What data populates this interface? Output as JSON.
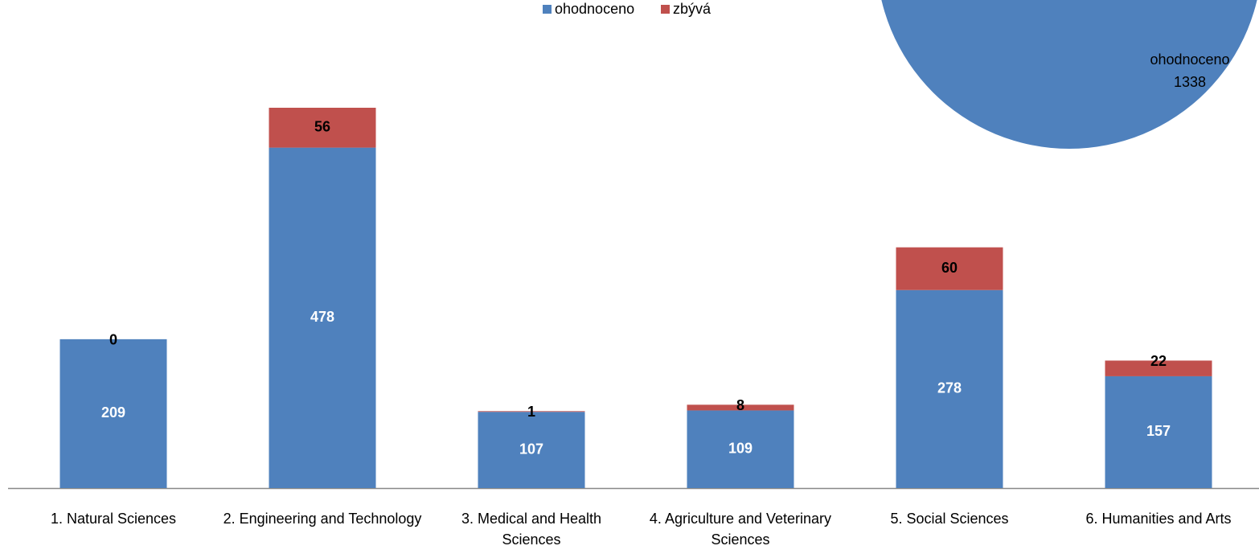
{
  "chart_data": [
    {
      "type": "bar",
      "stacked": true,
      "categories": [
        "1. Natural Sciences",
        "2. Engineering and Technology",
        "3. Medical and Health Sciences",
        "4. Agriculture and Veterinary Sciences",
        "5. Social Sciences",
        "6. Humanities and Arts"
      ],
      "series": [
        {
          "name": "ohodnoceno",
          "color": "#4f81bd",
          "values": [
            209,
            478,
            107,
            109,
            278,
            157
          ]
        },
        {
          "name": "zbývá",
          "color": "#c0504d",
          "values": [
            0,
            56,
            1,
            8,
            60,
            22
          ]
        }
      ],
      "legend": "top"
    },
    {
      "type": "pie",
      "categories": [
        "ohodnoceno"
      ],
      "values": [
        1338
      ],
      "colors": [
        "#4f81bd"
      ]
    }
  ]
}
